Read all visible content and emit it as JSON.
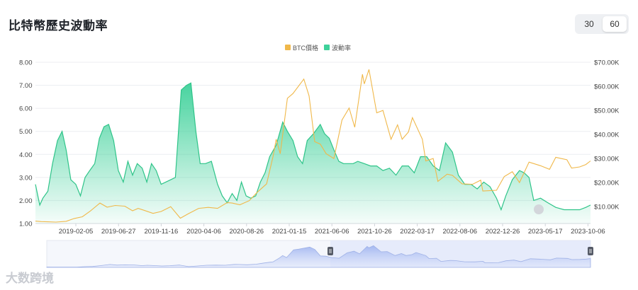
{
  "page": {
    "title": "比特幣歷史波動率"
  },
  "toggle": {
    "options": [
      "30",
      "60"
    ],
    "selected": "60"
  },
  "watermark": {
    "text": "大数跨境"
  },
  "chart_data": {
    "type": "line",
    "title": "比特幣歷史波動率",
    "legend": [
      {
        "name": "BTC價格",
        "color": "#f0b84a"
      },
      {
        "name": "波動率",
        "color": "#3ed19a"
      }
    ],
    "legend_position": "top-center",
    "x_ticks": [
      "2019-02-05",
      "2019-06-27",
      "2019-11-16",
      "2020-04-06",
      "2020-08-26",
      "2021-01-15",
      "2021-06-06",
      "2021-10-26",
      "2022-03-17",
      "2022-08-06",
      "2022-12-26",
      "2023-05-17",
      "2023-10-06"
    ],
    "y_left": {
      "ticks": [
        "1.00",
        "2.00",
        "3.00",
        "4.00",
        "5.00",
        "6.00",
        "7.00",
        "8.00"
      ],
      "range": [
        1,
        8
      ]
    },
    "y_right": {
      "ticks": [
        "$10.00K",
        "$20.00K",
        "$30.00K",
        "$40.00K",
        "$50.00K",
        "$60.00K",
        "$70.00K"
      ],
      "range": [
        3,
        70
      ]
    },
    "grid": "horizontal",
    "series": [
      {
        "name": "波動率",
        "axis": "left",
        "type": "area",
        "color": "#3ed19a",
        "points": [
          [
            "2018-12-01",
            2.7
          ],
          [
            "2018-12-15",
            1.8
          ],
          [
            "2018-12-25",
            2.1
          ],
          [
            "2019-01-10",
            2.4
          ],
          [
            "2019-01-25",
            3.6
          ],
          [
            "2019-02-10",
            4.6
          ],
          [
            "2019-02-25",
            5.0
          ],
          [
            "2019-03-10",
            4.2
          ],
          [
            "2019-03-25",
            2.9
          ],
          [
            "2019-04-10",
            2.7
          ],
          [
            "2019-04-25",
            2.2
          ],
          [
            "2019-05-10",
            3.0
          ],
          [
            "2019-05-25",
            3.3
          ],
          [
            "2019-06-10",
            3.6
          ],
          [
            "2019-06-25",
            4.7
          ],
          [
            "2019-07-10",
            5.2
          ],
          [
            "2019-07-25",
            5.3
          ],
          [
            "2019-08-10",
            4.6
          ],
          [
            "2019-08-25",
            3.3
          ],
          [
            "2019-09-10",
            2.8
          ],
          [
            "2019-09-25",
            3.7
          ],
          [
            "2019-10-10",
            3.1
          ],
          [
            "2019-10-25",
            3.6
          ],
          [
            "2019-11-10",
            3.4
          ],
          [
            "2019-11-25",
            2.8
          ],
          [
            "2019-12-10",
            3.6
          ],
          [
            "2019-12-25",
            3.3
          ],
          [
            "2020-01-10",
            2.7
          ],
          [
            "2020-01-25",
            2.8
          ],
          [
            "2020-02-10",
            2.9
          ],
          [
            "2020-02-25",
            3.0
          ],
          [
            "2020-03-15",
            6.8
          ],
          [
            "2020-04-01",
            7.0
          ],
          [
            "2020-04-15",
            7.1
          ],
          [
            "2020-05-01",
            5.0
          ],
          [
            "2020-05-15",
            3.6
          ],
          [
            "2020-06-01",
            3.6
          ],
          [
            "2020-06-20",
            3.7
          ],
          [
            "2020-07-10",
            2.7
          ],
          [
            "2020-07-25",
            2.2
          ],
          [
            "2020-08-10",
            1.9
          ],
          [
            "2020-08-26",
            2.3
          ],
          [
            "2020-09-10",
            2.0
          ],
          [
            "2020-09-25",
            2.8
          ],
          [
            "2020-10-10",
            2.2
          ],
          [
            "2020-10-25",
            2.1
          ],
          [
            "2020-11-10",
            2.2
          ],
          [
            "2020-11-25",
            2.8
          ],
          [
            "2020-12-10",
            3.2
          ],
          [
            "2020-12-25",
            3.9
          ],
          [
            "2021-01-15",
            4.4
          ],
          [
            "2021-02-05",
            5.4
          ],
          [
            "2021-02-20",
            5.0
          ],
          [
            "2021-03-10",
            4.6
          ],
          [
            "2021-03-25",
            3.9
          ],
          [
            "2021-04-10",
            3.6
          ],
          [
            "2021-04-25",
            4.6
          ],
          [
            "2021-05-15",
            4.9
          ],
          [
            "2021-06-06",
            5.3
          ],
          [
            "2021-06-20",
            4.9
          ],
          [
            "2021-07-05",
            4.7
          ],
          [
            "2021-07-20",
            4.2
          ],
          [
            "2021-08-05",
            3.7
          ],
          [
            "2021-08-20",
            3.6
          ],
          [
            "2021-09-05",
            3.6
          ],
          [
            "2021-09-20",
            3.6
          ],
          [
            "2021-10-05",
            3.7
          ],
          [
            "2021-10-26",
            3.6
          ],
          [
            "2021-11-15",
            3.5
          ],
          [
            "2021-12-05",
            3.5
          ],
          [
            "2021-12-25",
            3.3
          ],
          [
            "2022-01-15",
            3.4
          ],
          [
            "2022-02-05",
            3.1
          ],
          [
            "2022-02-25",
            3.5
          ],
          [
            "2022-03-17",
            3.5
          ],
          [
            "2022-04-05",
            3.2
          ],
          [
            "2022-04-25",
            3.9
          ],
          [
            "2022-05-15",
            3.9
          ],
          [
            "2022-06-05",
            3.5
          ],
          [
            "2022-06-25",
            3.3
          ],
          [
            "2022-07-15",
            4.5
          ],
          [
            "2022-08-06",
            4.1
          ],
          [
            "2022-08-25",
            3.1
          ],
          [
            "2022-09-15",
            2.7
          ],
          [
            "2022-10-05",
            2.7
          ],
          [
            "2022-10-25",
            2.5
          ],
          [
            "2022-11-15",
            2.8
          ],
          [
            "2022-12-05",
            2.6
          ],
          [
            "2022-12-26",
            2.1
          ],
          [
            "2023-01-10",
            1.6
          ],
          [
            "2023-01-25",
            2.2
          ],
          [
            "2023-02-15",
            2.9
          ],
          [
            "2023-03-10",
            3.3
          ],
          [
            "2023-03-25",
            3.2
          ],
          [
            "2023-04-10",
            3.0
          ],
          [
            "2023-04-25",
            2.0
          ],
          [
            "2023-05-17",
            2.1
          ],
          [
            "2023-06-10",
            1.9
          ],
          [
            "2023-07-05",
            1.7
          ],
          [
            "2023-08-01",
            1.6
          ],
          [
            "2023-08-25",
            1.6
          ],
          [
            "2023-09-20",
            1.6
          ],
          [
            "2023-10-10",
            1.7
          ],
          [
            "2023-10-25",
            1.8
          ]
        ]
      },
      {
        "name": "BTC價格",
        "axis": "right",
        "type": "line",
        "color": "#f0b84a",
        "points": [
          [
            "2018-12-01",
            4.0
          ],
          [
            "2018-12-20",
            3.8
          ],
          [
            "2019-01-10",
            3.7
          ],
          [
            "2019-02-05",
            3.6
          ],
          [
            "2019-03-10",
            3.9
          ],
          [
            "2019-04-05",
            5.1
          ],
          [
            "2019-05-01",
            5.8
          ],
          [
            "2019-05-25",
            8.0
          ],
          [
            "2019-06-27",
            11.5
          ],
          [
            "2019-07-20",
            9.8
          ],
          [
            "2019-08-15",
            10.5
          ],
          [
            "2019-09-15",
            10.2
          ],
          [
            "2019-10-10",
            8.3
          ],
          [
            "2019-10-28",
            9.3
          ],
          [
            "2019-11-16",
            8.5
          ],
          [
            "2019-12-15",
            7.2
          ],
          [
            "2020-01-10",
            8.0
          ],
          [
            "2020-02-10",
            10.0
          ],
          [
            "2020-03-12",
            5.2
          ],
          [
            "2020-04-06",
            7.0
          ],
          [
            "2020-05-10",
            9.3
          ],
          [
            "2020-06-10",
            9.7
          ],
          [
            "2020-07-10",
            9.3
          ],
          [
            "2020-08-10",
            11.7
          ],
          [
            "2020-08-26",
            11.5
          ],
          [
            "2020-09-20",
            10.8
          ],
          [
            "2020-10-20",
            12.5
          ],
          [
            "2020-11-15",
            16.0
          ],
          [
            "2020-12-15",
            19.5
          ],
          [
            "2021-01-05",
            31.0
          ],
          [
            "2021-01-15",
            38.0
          ],
          [
            "2021-01-28",
            32.0
          ],
          [
            "2021-02-20",
            55.0
          ],
          [
            "2021-03-10",
            57.0
          ],
          [
            "2021-04-14",
            63.0
          ],
          [
            "2021-05-01",
            56.0
          ],
          [
            "2021-05-19",
            37.0
          ],
          [
            "2021-06-06",
            36.0
          ],
          [
            "2021-06-25",
            32.0
          ],
          [
            "2021-07-20",
            30.0
          ],
          [
            "2021-08-15",
            46.0
          ],
          [
            "2021-09-07",
            51.0
          ],
          [
            "2021-09-25",
            43.0
          ],
          [
            "2021-10-20",
            65.0
          ],
          [
            "2021-10-26",
            61.0
          ],
          [
            "2021-11-10",
            67.0
          ],
          [
            "2021-12-05",
            49.0
          ],
          [
            "2021-12-25",
            50.0
          ],
          [
            "2022-01-20",
            38.0
          ],
          [
            "2022-02-10",
            44.0
          ],
          [
            "2022-02-25",
            38.0
          ],
          [
            "2022-03-17",
            41.0
          ],
          [
            "2022-03-30",
            47.0
          ],
          [
            "2022-05-01",
            38.0
          ],
          [
            "2022-05-12",
            29.0
          ],
          [
            "2022-06-05",
            30.0
          ],
          [
            "2022-06-20",
            20.5
          ],
          [
            "2022-07-20",
            23.5
          ],
          [
            "2022-08-06",
            23.0
          ],
          [
            "2022-09-06",
            19.5
          ],
          [
            "2022-10-10",
            19.3
          ],
          [
            "2022-11-05",
            21.0
          ],
          [
            "2022-11-12",
            16.5
          ],
          [
            "2022-12-26",
            16.8
          ],
          [
            "2023-01-20",
            22.5
          ],
          [
            "2023-02-15",
            24.5
          ],
          [
            "2023-03-10",
            20.0
          ],
          [
            "2023-04-10",
            28.5
          ],
          [
            "2023-05-17",
            27.0
          ],
          [
            "2023-06-15",
            25.5
          ],
          [
            "2023-07-05",
            30.5
          ],
          [
            "2023-08-10",
            29.5
          ],
          [
            "2023-08-25",
            26.0
          ],
          [
            "2023-09-20",
            26.5
          ],
          [
            "2023-10-10",
            27.5
          ],
          [
            "2023-10-25",
            29.0
          ]
        ]
      }
    ]
  }
}
